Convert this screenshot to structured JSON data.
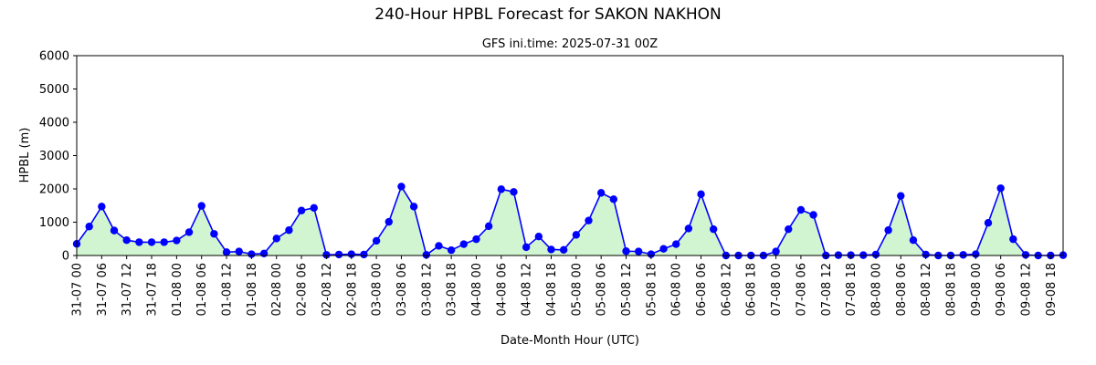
{
  "chart_data": {
    "type": "area",
    "title": "240-Hour HPBL Forecast for SAKON NAKHON",
    "subtitle": "GFS ini.time: 2025-07-31 00Z",
    "xlabel": "Date-Month Hour (UTC)",
    "ylabel": "HPBL (m)",
    "ylim": [
      0,
      6000
    ],
    "yticks": [
      0,
      1000,
      2000,
      3000,
      4000,
      5000,
      6000
    ],
    "xtick_labels": [
      "31-07 00",
      "31-07 06",
      "31-07 12",
      "31-07 18",
      "01-08 00",
      "01-08 06",
      "01-08 12",
      "01-08 18",
      "02-08 00",
      "02-08 06",
      "02-08 12",
      "02-08 18",
      "03-08 00",
      "03-08 06",
      "03-08 12",
      "03-08 18",
      "04-08 00",
      "04-08 06",
      "04-08 12",
      "04-08 18",
      "05-08 00",
      "05-08 06",
      "05-08 12",
      "05-08 18",
      "06-08 00",
      "06-08 06",
      "06-08 12",
      "06-08 18",
      "07-08 00",
      "07-08 06",
      "07-08 12",
      "07-08 18",
      "08-08 00",
      "08-08 06",
      "08-08 12",
      "08-08 18",
      "09-08 00",
      "09-08 06",
      "09-08 12",
      "09-08 18"
    ],
    "x_step_hours": 3,
    "grid": false,
    "line_color": "#0000ff",
    "fill_color": "#d0f5d0",
    "values": [
      350,
      870,
      1470,
      750,
      460,
      400,
      400,
      400,
      450,
      700,
      1490,
      650,
      100,
      120,
      40,
      60,
      510,
      760,
      1350,
      1430,
      20,
      30,
      40,
      30,
      440,
      1010,
      2070,
      1470,
      20,
      290,
      160,
      340,
      490,
      880,
      1990,
      1910,
      250,
      570,
      180,
      170,
      620,
      1050,
      1880,
      1690,
      130,
      120,
      40,
      200,
      340,
      810,
      1840,
      790,
      0,
      0,
      0,
      0,
      120,
      790,
      1370,
      1220,
      0,
      10,
      10,
      10,
      30,
      760,
      1790,
      460,
      30,
      0,
      0,
      20,
      40,
      980,
      2020,
      490,
      20,
      0,
      0,
      10
    ]
  }
}
